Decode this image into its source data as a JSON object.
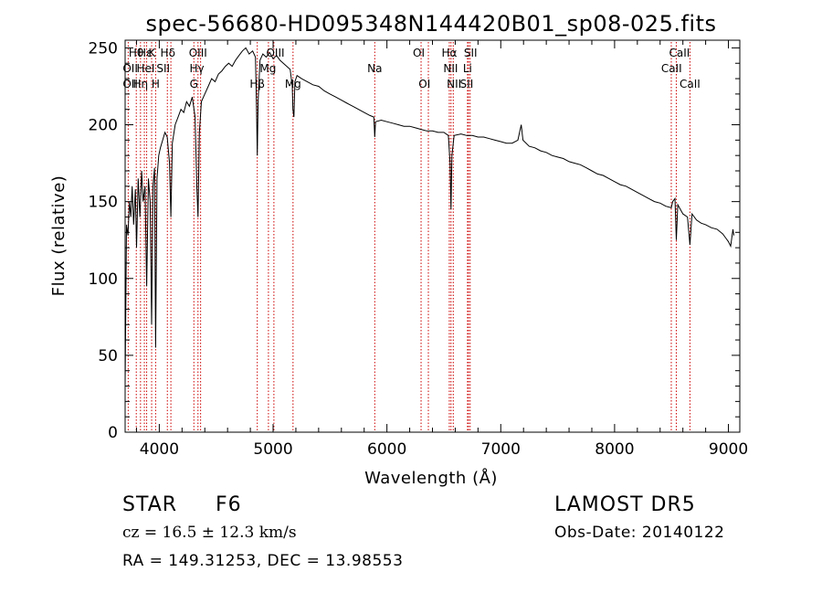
{
  "chart_data": {
    "type": "line",
    "title": "spec-56680-HD095348N144420B01_sp08-025.fits",
    "xlabel": "Wavelength (Å)",
    "ylabel": "Flux (relative)",
    "xlim": [
      3700,
      9100
    ],
    "ylim": [
      0,
      255
    ],
    "x_ticks": [
      4000,
      5000,
      6000,
      7000,
      8000,
      9000
    ],
    "y_ticks": [
      0,
      50,
      100,
      150,
      200,
      250
    ],
    "grid": false,
    "line_color": "#000000",
    "marker_color": "#cc0000",
    "series": [
      {
        "points": [
          [
            3700,
            30
          ],
          [
            3712,
            135
          ],
          [
            3725,
            128
          ],
          [
            3738,
            150
          ],
          [
            3750,
            140
          ],
          [
            3762,
            160
          ],
          [
            3775,
            135
          ],
          [
            3790,
            158
          ],
          [
            3800,
            120
          ],
          [
            3815,
            165
          ],
          [
            3830,
            140
          ],
          [
            3845,
            170
          ],
          [
            3858,
            150
          ],
          [
            3875,
            160
          ],
          [
            3889,
            95
          ],
          [
            3905,
            165
          ],
          [
            3920,
            150
          ],
          [
            3933,
            70
          ],
          [
            3945,
            160
          ],
          [
            3958,
            172
          ],
          [
            3968,
            55
          ],
          [
            3980,
            165
          ],
          [
            3995,
            180
          ],
          [
            4010,
            185
          ],
          [
            4030,
            190
          ],
          [
            4050,
            195
          ],
          [
            4070,
            192
          ],
          [
            4090,
            175
          ],
          [
            4102,
            140
          ],
          [
            4115,
            188
          ],
          [
            4140,
            200
          ],
          [
            4165,
            205
          ],
          [
            4190,
            210
          ],
          [
            4215,
            208
          ],
          [
            4240,
            215
          ],
          [
            4265,
            212
          ],
          [
            4290,
            218
          ],
          [
            4315,
            205
          ],
          [
            4330,
            160
          ],
          [
            4340,
            140
          ],
          [
            4352,
            195
          ],
          [
            4370,
            215
          ],
          [
            4400,
            220
          ],
          [
            4430,
            225
          ],
          [
            4460,
            230
          ],
          [
            4490,
            228
          ],
          [
            4520,
            233
          ],
          [
            4550,
            235
          ],
          [
            4580,
            238
          ],
          [
            4610,
            240
          ],
          [
            4640,
            238
          ],
          [
            4670,
            242
          ],
          [
            4700,
            245
          ],
          [
            4730,
            248
          ],
          [
            4760,
            250
          ],
          [
            4790,
            246
          ],
          [
            4820,
            248
          ],
          [
            4845,
            244
          ],
          [
            4855,
            210
          ],
          [
            4861,
            180
          ],
          [
            4868,
            215
          ],
          [
            4885,
            242
          ],
          [
            4910,
            246
          ],
          [
            4940,
            244
          ],
          [
            4970,
            247
          ],
          [
            5000,
            243
          ],
          [
            5030,
            245
          ],
          [
            5060,
            242
          ],
          [
            5090,
            240
          ],
          [
            5120,
            238
          ],
          [
            5150,
            236
          ],
          [
            5168,
            225
          ],
          [
            5174,
            210
          ],
          [
            5183,
            205
          ],
          [
            5192,
            228
          ],
          [
            5210,
            232
          ],
          [
            5250,
            230
          ],
          [
            5300,
            228
          ],
          [
            5350,
            226
          ],
          [
            5400,
            225
          ],
          [
            5450,
            222
          ],
          [
            5500,
            220
          ],
          [
            5550,
            218
          ],
          [
            5600,
            216
          ],
          [
            5650,
            214
          ],
          [
            5700,
            212
          ],
          [
            5750,
            210
          ],
          [
            5800,
            208
          ],
          [
            5850,
            206
          ],
          [
            5885,
            205
          ],
          [
            5893,
            192
          ],
          [
            5900,
            202
          ],
          [
            5950,
            203
          ],
          [
            6000,
            202
          ],
          [
            6050,
            201
          ],
          [
            6100,
            200
          ],
          [
            6150,
            199
          ],
          [
            6200,
            199
          ],
          [
            6250,
            198
          ],
          [
            6300,
            197
          ],
          [
            6350,
            196
          ],
          [
            6400,
            196
          ],
          [
            6450,
            195
          ],
          [
            6500,
            195
          ],
          [
            6540,
            193
          ],
          [
            6555,
            175
          ],
          [
            6563,
            145
          ],
          [
            6571,
            180
          ],
          [
            6590,
            193
          ],
          [
            6650,
            194
          ],
          [
            6700,
            193
          ],
          [
            6750,
            193
          ],
          [
            6800,
            192
          ],
          [
            6850,
            192
          ],
          [
            6900,
            191
          ],
          [
            6950,
            190
          ],
          [
            7000,
            189
          ],
          [
            7050,
            188
          ],
          [
            7100,
            188
          ],
          [
            7150,
            190
          ],
          [
            7180,
            200
          ],
          [
            7195,
            190
          ],
          [
            7250,
            186
          ],
          [
            7300,
            185
          ],
          [
            7350,
            183
          ],
          [
            7400,
            182
          ],
          [
            7450,
            180
          ],
          [
            7500,
            179
          ],
          [
            7550,
            178
          ],
          [
            7600,
            176
          ],
          [
            7650,
            175
          ],
          [
            7700,
            174
          ],
          [
            7750,
            172
          ],
          [
            7800,
            170
          ],
          [
            7850,
            168
          ],
          [
            7900,
            167
          ],
          [
            7950,
            165
          ],
          [
            8000,
            163
          ],
          [
            8050,
            161
          ],
          [
            8100,
            160
          ],
          [
            8150,
            158
          ],
          [
            8200,
            156
          ],
          [
            8250,
            154
          ],
          [
            8300,
            152
          ],
          [
            8350,
            150
          ],
          [
            8400,
            149
          ],
          [
            8450,
            147
          ],
          [
            8498,
            146
          ],
          [
            8510,
            150
          ],
          [
            8530,
            152
          ],
          [
            8542,
            125
          ],
          [
            8555,
            148
          ],
          [
            8600,
            142
          ],
          [
            8640,
            140
          ],
          [
            8662,
            122
          ],
          [
            8680,
            142
          ],
          [
            8720,
            138
          ],
          [
            8760,
            136
          ],
          [
            8800,
            135
          ],
          [
            8850,
            133
          ],
          [
            8900,
            132
          ],
          [
            8950,
            129
          ],
          [
            8980,
            126
          ],
          [
            9000,
            124
          ],
          [
            9020,
            121
          ],
          [
            9040,
            132
          ],
          [
            9048,
            128
          ]
        ]
      }
    ],
    "line_markers": [
      {
        "x": 3727,
        "rows": [
          "OII",
          ""
        ]
      },
      {
        "x": 3798,
        "rows": [
          "",
          "OII"
        ]
      },
      {
        "x": 3835,
        "rows": [
          "Hη",
          ""
        ]
      },
      {
        "x": 3869,
        "rows": [
          "",
          ""
        ]
      },
      {
        "x": 3889,
        "rows": [
          "Hζ",
          "HeI"
        ]
      },
      {
        "x": 3933,
        "rows": [
          "K",
          ""
        ]
      },
      {
        "x": 3968,
        "rows": [
          "H",
          ""
        ]
      },
      {
        "x": 4071,
        "rows": [
          "",
          "SII"
        ]
      },
      {
        "x": 4102,
        "rows": [
          "Hδ",
          ""
        ]
      },
      {
        "x": 4304,
        "rows": [
          "G",
          ""
        ]
      },
      {
        "x": 4340,
        "rows": [
          "Hγ",
          ""
        ]
      },
      {
        "x": 4363,
        "rows": [
          "OIII",
          ""
        ]
      },
      {
        "x": 4861,
        "rows": [
          "Hβ",
          ""
        ]
      },
      {
        "x": 4959,
        "rows": [
          "",
          ""
        ]
      },
      {
        "x": 5007,
        "rows": [
          "OIII",
          ""
        ]
      },
      {
        "x": 5175,
        "rows": [
          "Mg",
          ""
        ]
      },
      {
        "x": 5893,
        "rows": [
          "Na",
          ""
        ]
      },
      {
        "x": 6300,
        "rows": [
          "OI",
          ""
        ]
      },
      {
        "x": 6364,
        "rows": [
          "OI",
          ""
        ]
      },
      {
        "x": 6548,
        "rows": [
          "NII",
          ""
        ]
      },
      {
        "x": 6563,
        "rows": [
          "Hα",
          ""
        ]
      },
      {
        "x": 6583,
        "rows": [
          "NII",
          ""
        ]
      },
      {
        "x": 6708,
        "rows": [
          "Li",
          ""
        ]
      },
      {
        "x": 6717,
        "rows": [
          "SII",
          ""
        ]
      },
      {
        "x": 6731,
        "rows": [
          "SII",
          ""
        ]
      },
      {
        "x": 8498,
        "rows": [
          "CaII",
          ""
        ]
      },
      {
        "x": 8542,
        "rows": [
          "CaII",
          ""
        ]
      },
      {
        "x": 8662,
        "rows": [
          "CaII",
          ""
        ]
      }
    ],
    "line_labels": [
      {
        "text": "Hθ",
        "x": 3797,
        "row": 0
      },
      {
        "text": "Hε",
        "x": 3875,
        "row": 0
      },
      {
        "text": "K",
        "x": 3935,
        "row": 0
      },
      {
        "text": "Hδ",
        "x": 4075,
        "row": 0
      },
      {
        "text": "OIII",
        "x": 4340,
        "row": 0
      },
      {
        "text": "OIII",
        "x": 5020,
        "row": 0
      },
      {
        "text": "OI",
        "x": 6280,
        "row": 0
      },
      {
        "text": "Hα",
        "x": 6548,
        "row": 0
      },
      {
        "text": "SII",
        "x": 6735,
        "row": 0
      },
      {
        "text": "CaII",
        "x": 8570,
        "row": 0
      },
      {
        "text": "OII",
        "x": 3745,
        "row": 1
      },
      {
        "text": "HeI",
        "x": 3880,
        "row": 1
      },
      {
        "text": "SII",
        "x": 4035,
        "row": 1
      },
      {
        "text": "Hγ",
        "x": 4330,
        "row": 1
      },
      {
        "text": "Mg",
        "x": 4955,
        "row": 1
      },
      {
        "text": "Na",
        "x": 5893,
        "row": 1
      },
      {
        "text": "NII",
        "x": 6560,
        "row": 1
      },
      {
        "text": "Li",
        "x": 6708,
        "row": 1
      },
      {
        "text": "CaII",
        "x": 8500,
        "row": 1
      },
      {
        "text": "OII",
        "x": 3745,
        "row": 2
      },
      {
        "text": "Hη",
        "x": 3835,
        "row": 2
      },
      {
        "text": "H",
        "x": 3968,
        "row": 2
      },
      {
        "text": "G",
        "x": 4304,
        "row": 2
      },
      {
        "text": "Hβ",
        "x": 4861,
        "row": 2
      },
      {
        "text": "Mg",
        "x": 5175,
        "row": 2
      },
      {
        "text": "OI",
        "x": 6330,
        "row": 2
      },
      {
        "text": "NII",
        "x": 6590,
        "row": 2
      },
      {
        "text": "SII",
        "x": 6700,
        "row": 2
      },
      {
        "text": "CaII",
        "x": 8662,
        "row": 2
      }
    ]
  },
  "info": {
    "object_type": "STAR",
    "subclass": "F6",
    "survey": "LAMOST DR5",
    "redshift": "cz = 16.5 ± 12.3 km/s",
    "obs_date": "Obs-Date: 20140122",
    "coordinates": "RA = 149.31253, DEC =  13.98553"
  }
}
